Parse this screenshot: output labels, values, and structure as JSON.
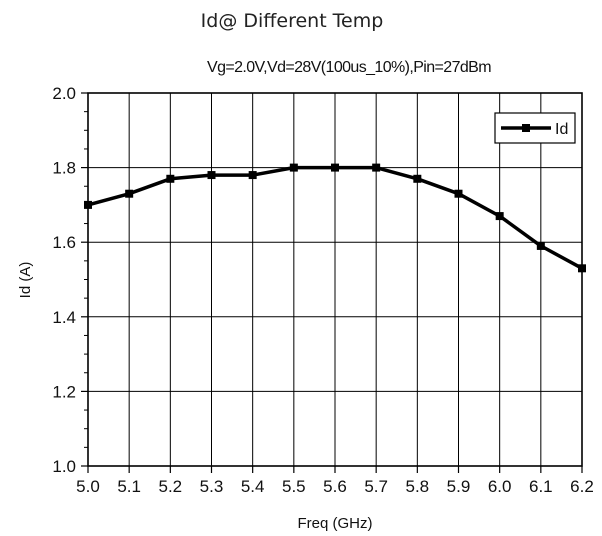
{
  "chart_data": {
    "type": "line",
    "title": "Id@ Different Temp",
    "subtitle": "Vg=2.0V,Vd=28V(100us_10%),Pin=27dBm",
    "xlabel": "Freq (GHz)",
    "ylabel": "Id (A)",
    "xlim": [
      5.0,
      6.2
    ],
    "ylim": [
      1.0,
      2.0
    ],
    "x_ticks": [
      "5.0",
      "5.1",
      "5.2",
      "5.3",
      "5.4",
      "5.5",
      "5.6",
      "5.7",
      "5.8",
      "5.9",
      "6.0",
      "6.1",
      "6.2"
    ],
    "y_ticks": [
      "1.0",
      "1.2",
      "1.4",
      "1.6",
      "1.8",
      "2.0"
    ],
    "grid": true,
    "legend_position": "top-right",
    "series": [
      {
        "name": "Id",
        "color": "#000000",
        "marker": "square",
        "x": [
          5.0,
          5.1,
          5.2,
          5.3,
          5.4,
          5.5,
          5.6,
          5.7,
          5.8,
          5.9,
          6.0,
          6.1,
          6.2
        ],
        "values": [
          1.7,
          1.73,
          1.77,
          1.78,
          1.78,
          1.8,
          1.8,
          1.8,
          1.77,
          1.73,
          1.67,
          1.59,
          1.53
        ]
      }
    ]
  }
}
